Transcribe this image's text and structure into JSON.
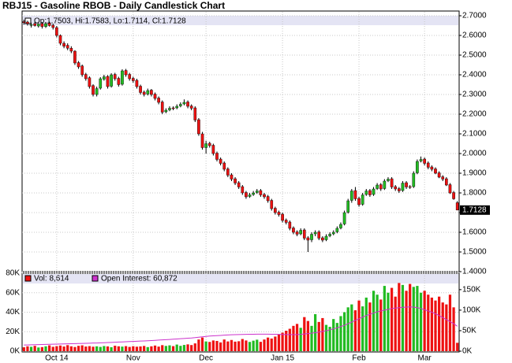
{
  "chart_data": {
    "type": "candlestick",
    "title": "RBJ15 - Gasoline RBOB - Daily Candlestick Chart",
    "legend_text": "Op:1.7503, Hi:1.7583, Lo:1.7114, Cl:1.7128",
    "up_color": "#22bb22",
    "down_color": "#ee1111",
    "categories": [
      null,
      null,
      null,
      null,
      null,
      null,
      null,
      null,
      null,
      "Oct 14",
      null,
      null,
      null,
      null,
      null,
      null,
      null,
      null,
      null,
      null,
      null,
      null,
      null,
      null,
      null,
      null,
      null,
      null,
      null,
      null,
      "Nov",
      null,
      null,
      null,
      null,
      null,
      null,
      null,
      null,
      null,
      null,
      null,
      null,
      null,
      null,
      null,
      null,
      null,
      null,
      null,
      "Dec",
      null,
      null,
      null,
      null,
      null,
      null,
      null,
      null,
      null,
      null,
      null,
      null,
      null,
      null,
      null,
      null,
      null,
      null,
      null,
      null,
      "Jan 15",
      null,
      null,
      null,
      null,
      null,
      null,
      null,
      null,
      null,
      null,
      null,
      null,
      null,
      null,
      null,
      null,
      null,
      null,
      null,
      null,
      "Feb",
      null,
      null,
      null,
      null,
      null,
      null,
      null,
      null,
      null,
      null,
      null,
      null,
      null,
      null,
      null,
      null,
      null,
      "Mar",
      null,
      null,
      null,
      null,
      null,
      null,
      null,
      null,
      null
    ],
    "open": [
      2.67,
      2.668,
      2.652,
      2.66,
      2.648,
      2.66,
      2.645,
      2.662,
      2.652,
      2.64,
      2.6,
      2.56,
      2.55,
      2.535,
      2.52,
      2.462,
      2.445,
      2.402,
      2.385,
      2.345,
      2.3,
      2.332,
      2.378,
      2.392,
      2.342,
      2.402,
      2.382,
      2.352,
      2.422,
      2.402,
      2.382,
      2.372,
      2.342,
      2.312,
      2.302,
      2.322,
      2.302,
      2.282,
      2.262,
      2.212,
      2.222,
      2.232,
      2.232,
      2.242,
      2.252,
      2.262,
      2.242,
      2.232,
      2.172,
      2.1,
      2.03,
      2.052,
      2.042,
      2.002,
      1.972,
      1.952,
      1.922,
      1.892,
      1.872,
      1.852,
      1.832,
      1.802,
      1.782,
      1.792,
      1.802,
      1.812,
      1.792,
      1.782,
      1.762,
      1.722,
      1.702,
      1.692,
      1.662,
      1.652,
      1.622,
      1.602,
      1.592,
      1.612,
      1.572,
      1.562,
      1.592,
      1.602,
      1.572,
      1.562,
      1.582,
      1.592,
      1.602,
      1.622,
      1.642,
      1.702,
      1.762,
      1.812,
      1.772,
      1.742,
      1.792,
      1.812,
      1.792,
      1.822,
      1.842,
      1.822,
      1.862,
      1.872,
      1.832,
      1.822,
      1.812,
      1.852,
      1.832,
      1.832,
      1.902,
      1.962,
      1.972,
      1.952,
      1.932,
      1.922,
      1.902,
      1.882,
      1.872,
      1.842,
      1.802,
      1.7503
    ],
    "high": [
      2.68,
      2.675,
      2.665,
      2.668,
      2.662,
      2.668,
      2.668,
      2.67,
      2.66,
      2.648,
      2.605,
      2.57,
      2.56,
      2.545,
      2.525,
      2.47,
      2.452,
      2.41,
      2.392,
      2.352,
      2.34,
      2.388,
      2.4,
      2.398,
      2.408,
      2.41,
      2.39,
      2.428,
      2.43,
      2.41,
      2.39,
      2.38,
      2.35,
      2.32,
      2.33,
      2.328,
      2.31,
      2.29,
      2.27,
      2.23,
      2.24,
      2.24,
      2.25,
      2.26,
      2.275,
      2.27,
      2.25,
      2.24,
      2.18,
      2.11,
      2.065,
      2.06,
      2.05,
      2.01,
      1.98,
      1.96,
      1.93,
      1.9,
      1.88,
      1.86,
      1.84,
      1.81,
      1.8,
      1.81,
      1.82,
      1.82,
      1.8,
      1.79,
      1.77,
      1.73,
      1.71,
      1.7,
      1.67,
      1.66,
      1.63,
      1.61,
      1.62,
      1.62,
      1.58,
      1.6,
      1.61,
      1.61,
      1.58,
      1.59,
      1.6,
      1.61,
      1.63,
      1.65,
      1.71,
      1.77,
      1.82,
      1.83,
      1.78,
      1.8,
      1.82,
      1.82,
      1.83,
      1.85,
      1.85,
      1.87,
      1.88,
      1.88,
      1.84,
      1.83,
      1.86,
      1.86,
      1.84,
      1.91,
      1.97,
      1.985,
      1.98,
      1.96,
      1.94,
      1.93,
      1.91,
      1.89,
      1.88,
      1.85,
      1.81,
      1.7583
    ],
    "low": [
      2.655,
      2.65,
      2.64,
      2.645,
      2.64,
      2.635,
      2.638,
      2.645,
      2.63,
      2.59,
      2.55,
      2.535,
      2.525,
      2.51,
      2.45,
      2.43,
      2.39,
      2.37,
      2.33,
      2.29,
      2.29,
      2.325,
      2.37,
      2.33,
      2.335,
      2.37,
      2.34,
      2.345,
      2.39,
      2.37,
      2.36,
      2.33,
      2.3,
      2.29,
      2.295,
      2.29,
      2.27,
      2.25,
      2.2,
      2.205,
      2.215,
      2.22,
      2.225,
      2.235,
      2.245,
      2.23,
      2.22,
      2.16,
      2.09,
      2.02,
      2.0,
      2.03,
      1.99,
      1.96,
      1.94,
      1.91,
      1.88,
      1.86,
      1.84,
      1.82,
      1.79,
      1.77,
      1.775,
      1.785,
      1.795,
      1.78,
      1.77,
      1.75,
      1.71,
      1.69,
      1.68,
      1.65,
      1.64,
      1.61,
      1.59,
      1.58,
      1.585,
      1.56,
      1.5,
      1.55,
      1.58,
      1.56,
      1.55,
      1.555,
      1.575,
      1.585,
      1.595,
      1.615,
      1.635,
      1.695,
      1.75,
      1.76,
      1.73,
      1.735,
      1.785,
      1.78,
      1.785,
      1.815,
      1.81,
      1.815,
      1.855,
      1.82,
      1.81,
      1.8,
      1.805,
      1.82,
      1.82,
      1.825,
      1.895,
      1.955,
      1.94,
      1.92,
      1.91,
      1.895,
      1.875,
      1.86,
      1.835,
      1.795,
      1.765,
      1.7114
    ],
    "close": [
      2.665,
      2.66,
      2.655,
      2.65,
      2.658,
      2.645,
      2.66,
      2.65,
      2.64,
      2.6,
      2.56,
      2.545,
      2.535,
      2.52,
      2.46,
      2.44,
      2.4,
      2.38,
      2.34,
      2.3,
      2.33,
      2.38,
      2.39,
      2.34,
      2.4,
      2.38,
      2.35,
      2.42,
      2.4,
      2.38,
      2.37,
      2.34,
      2.31,
      2.3,
      2.32,
      2.3,
      2.28,
      2.26,
      2.21,
      2.22,
      2.23,
      2.23,
      2.24,
      2.25,
      2.26,
      2.24,
      2.23,
      2.17,
      2.1,
      2.03,
      2.05,
      2.04,
      2.0,
      1.97,
      1.95,
      1.92,
      1.89,
      1.87,
      1.85,
      1.83,
      1.8,
      1.78,
      1.79,
      1.8,
      1.81,
      1.79,
      1.78,
      1.76,
      1.72,
      1.7,
      1.69,
      1.66,
      1.65,
      1.62,
      1.6,
      1.59,
      1.61,
      1.57,
      1.56,
      1.59,
      1.6,
      1.57,
      1.56,
      1.58,
      1.59,
      1.6,
      1.62,
      1.64,
      1.7,
      1.76,
      1.81,
      1.77,
      1.74,
      1.79,
      1.81,
      1.79,
      1.82,
      1.84,
      1.82,
      1.86,
      1.87,
      1.83,
      1.82,
      1.81,
      1.85,
      1.83,
      1.83,
      1.9,
      1.96,
      1.97,
      1.95,
      1.93,
      1.92,
      1.9,
      1.88,
      1.87,
      1.84,
      1.8,
      1.77,
      1.7128
    ],
    "ylim": [
      1.4,
      2.72
    ],
    "yticks": [
      {
        "value": 1.4,
        "label": "1.4000"
      },
      {
        "value": 1.5,
        "label": "1.5000"
      },
      {
        "value": 1.6,
        "label": "1.6000"
      },
      {
        "value": 1.7,
        "label": "1.7000"
      },
      {
        "value": 1.8,
        "label": "1.8000"
      },
      {
        "value": 1.9,
        "label": "1.9000"
      },
      {
        "value": 2.0,
        "label": "2.0000"
      },
      {
        "value": 2.1,
        "label": "2.1000"
      },
      {
        "value": 2.2,
        "label": "2.2000"
      },
      {
        "value": 2.3,
        "label": "2.3000"
      },
      {
        "value": 2.4,
        "label": "2.4000"
      },
      {
        "value": 2.5,
        "label": "2.5000"
      },
      {
        "value": 2.6,
        "label": "2.6000"
      },
      {
        "value": 2.7,
        "label": "2.7000"
      }
    ],
    "grid": true,
    "series": [
      {
        "name": "Vol: 8,614",
        "color": "#ee1111",
        "axis": "y",
        "values": [
          4000,
          5000,
          4500,
          5500,
          3800,
          4200,
          5000,
          6000,
          4500,
          5200,
          5800,
          4800,
          6200,
          5000,
          4300,
          5500,
          6000,
          4800,
          5200,
          4600,
          5000,
          4400,
          5300,
          4900,
          4100,
          5600,
          5000,
          4700,
          5200,
          4400,
          5100,
          4600,
          4900,
          5400,
          4200,
          5000,
          5800,
          4700,
          6200,
          5400,
          6000,
          5200,
          6800,
          5500,
          6400,
          7000,
          6300,
          8000,
          12000,
          14000,
          10000,
          9500,
          11000,
          10500,
          9000,
          12000,
          10000,
          11500,
          9800,
          10200,
          12500,
          11000,
          9500,
          10800,
          11800,
          9600,
          12000,
          14000,
          13000,
          15000,
          17000,
          19000,
          21000,
          23000,
          26000,
          28000,
          24000,
          35000,
          31000,
          26000,
          38000,
          30000,
          34000,
          27000,
          25000,
          33000,
          29000,
          36000,
          40000,
          45000,
          48000,
          42000,
          52000,
          46000,
          55000,
          50000,
          62000,
          58000,
          53000,
          67000,
          60000,
          65000,
          56000,
          70000,
          68000,
          62000,
          69000,
          66000,
          67000,
          60000,
          62000,
          58000,
          55000,
          52000,
          56000,
          50000,
          48000,
          58000,
          45000,
          8614
        ]
      },
      {
        "name": "Open Interest: 60,872",
        "color": "#cc33cc",
        "axis": "y2",
        "values": [
          15000,
          15200,
          15500,
          15800,
          16000,
          16300,
          16500,
          16800,
          17000,
          17200,
          17500,
          17800,
          18000,
          18200,
          18500,
          18800,
          19000,
          19200,
          19500,
          19800,
          20000,
          20300,
          20600,
          21000,
          21400,
          21800,
          22200,
          22600,
          23000,
          23400,
          23800,
          24200,
          24600,
          25000,
          25500,
          26000,
          26500,
          27000,
          27500,
          28000,
          28600,
          29200,
          29800,
          30400,
          31000,
          31600,
          32200,
          33000,
          34000,
          35000,
          36000,
          37000,
          37500,
          38000,
          38500,
          39000,
          39500,
          40000,
          40300,
          40600,
          40800,
          41000,
          41200,
          41300,
          41400,
          41500,
          41500,
          41400,
          41300,
          41200,
          41000,
          40800,
          40600,
          40500,
          40400,
          40500,
          41000,
          42000,
          43000,
          44000,
          45000,
          46500,
          48000,
          50000,
          52000,
          54500,
          57000,
          60000,
          63000,
          67000,
          71000,
          75000,
          79000,
          83000,
          87000,
          90000,
          93000,
          96000,
          98000,
          100000,
          102000,
          104000,
          105000,
          106000,
          107000,
          107500,
          108000,
          107500,
          106000,
          104000,
          101000,
          98000,
          95000,
          91000,
          87000,
          82000,
          77000,
          72000,
          67000,
          60872
        ]
      }
    ],
    "vol_ylim": [
      0,
      80000
    ],
    "vol_yticks": [
      {
        "value": 0,
        "label": "0K"
      },
      {
        "value": 20000,
        "label": "20K"
      },
      {
        "value": 40000,
        "label": "40K"
      },
      {
        "value": 60000,
        "label": "60K"
      },
      {
        "value": 80000,
        "label": "80K"
      }
    ],
    "y2lim": [
      0,
      190000
    ],
    "y2ticks": [
      {
        "value": 0,
        "label": "0K"
      },
      {
        "value": 50000,
        "label": "50K"
      },
      {
        "value": 100000,
        "label": "100K"
      },
      {
        "value": 150000,
        "label": "150K"
      }
    ]
  }
}
